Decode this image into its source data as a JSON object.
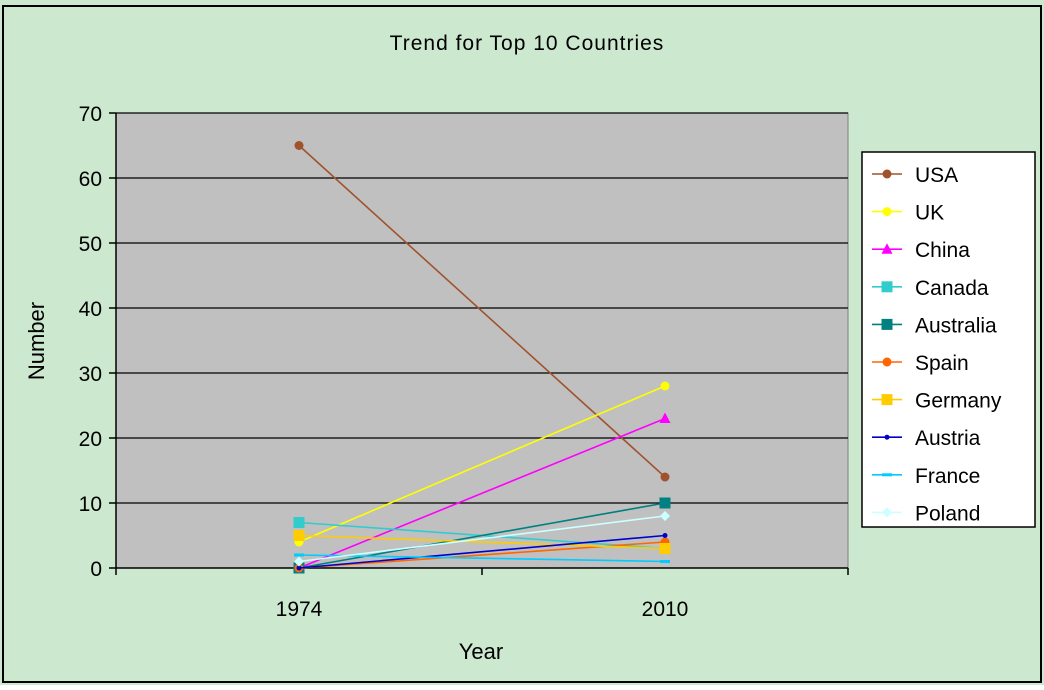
{
  "chart_data": {
    "type": "line",
    "title": "Trend for Top 10 Countries",
    "xlabel": "Year",
    "ylabel": "Number",
    "categories": [
      "1974",
      "2010"
    ],
    "ylim": [
      0,
      70
    ],
    "yticks": [
      0,
      10,
      20,
      30,
      40,
      50,
      60,
      70
    ],
    "grid": true,
    "legend_position": "right",
    "series": [
      {
        "name": "USA",
        "values": [
          65,
          14
        ],
        "color": "#A0522D",
        "marker": "circle"
      },
      {
        "name": "UK",
        "values": [
          4,
          28
        ],
        "color": "#FFFF00",
        "marker": "circle"
      },
      {
        "name": "China",
        "values": [
          0,
          23
        ],
        "color": "#FF00FF",
        "marker": "triangle"
      },
      {
        "name": "Canada",
        "values": [
          7,
          3
        ],
        "color": "#33CCCC",
        "marker": "square"
      },
      {
        "name": "Australia",
        "values": [
          0,
          10
        ],
        "color": "#008080",
        "marker": "square"
      },
      {
        "name": "Spain",
        "values": [
          0,
          4
        ],
        "color": "#FF6600",
        "marker": "circle"
      },
      {
        "name": "Germany",
        "values": [
          5,
          3
        ],
        "color": "#FFCC00",
        "marker": "square"
      },
      {
        "name": "Austria",
        "values": [
          0,
          5
        ],
        "color": "#0000CC",
        "marker": "dot"
      },
      {
        "name": "France",
        "values": [
          2,
          1
        ],
        "color": "#00CCFF",
        "marker": "dash"
      },
      {
        "name": "Poland",
        "values": [
          1,
          8
        ],
        "color": "#CCFFFF",
        "marker": "diamond"
      }
    ],
    "colors": {
      "background": "#CCE8CF",
      "plot_background": "#C0C0C0",
      "grid": "#000000"
    }
  }
}
